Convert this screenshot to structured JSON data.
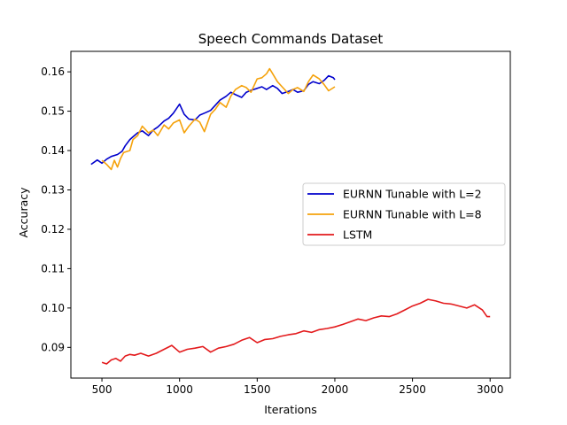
{
  "chart_data": {
    "type": "line",
    "title": "Speech Commands Dataset",
    "xlabel": "Iterations",
    "ylabel": "Accuracy",
    "xlim": [
      300,
      3130
    ],
    "ylim": [
      0.0822,
      0.1652
    ],
    "xticks": [
      500,
      1000,
      1500,
      2000,
      2500,
      3000
    ],
    "yticks": [
      0.09,
      0.1,
      0.11,
      0.12,
      0.13,
      0.14,
      0.15,
      0.16
    ],
    "ytick_labels": [
      "0.09",
      "0.10",
      "0.11",
      "0.12",
      "0.13",
      "0.14",
      "0.15",
      "0.16"
    ],
    "grid": false,
    "legend_position": "center-right",
    "series": [
      {
        "name": "EURNN Tunable with L=2",
        "color": "#0000cc",
        "x": [
          430,
          470,
          500,
          530,
          560,
          600,
          630,
          650,
          680,
          700,
          730,
          760,
          800,
          830,
          860,
          900,
          930,
          960,
          1000,
          1030,
          1060,
          1100,
          1130,
          1160,
          1200,
          1230,
          1260,
          1300,
          1330,
          1360,
          1400,
          1430,
          1460,
          1500,
          1530,
          1560,
          1600,
          1630,
          1660,
          1700,
          1730,
          1760,
          1800,
          1830,
          1860,
          1900,
          1930,
          1960,
          1990,
          2000
        ],
        "y": [
          0.1365,
          0.1376,
          0.1368,
          0.1378,
          0.1385,
          0.139,
          0.1398,
          0.1412,
          0.1428,
          0.1435,
          0.1445,
          0.145,
          0.1438,
          0.1452,
          0.146,
          0.1475,
          0.1482,
          0.1495,
          0.1518,
          0.1492,
          0.148,
          0.1478,
          0.149,
          0.1495,
          0.1502,
          0.1515,
          0.1528,
          0.1538,
          0.1548,
          0.1542,
          0.1535,
          0.1548,
          0.1553,
          0.1558,
          0.1562,
          0.1555,
          0.1565,
          0.1558,
          0.1545,
          0.155,
          0.1555,
          0.1548,
          0.1552,
          0.1568,
          0.1575,
          0.157,
          0.1578,
          0.159,
          0.1585,
          0.158
        ]
      },
      {
        "name": "EURNN Tunable with L=8",
        "color": "#f5a20b",
        "x": [
          500,
          530,
          560,
          580,
          600,
          620,
          640,
          680,
          700,
          730,
          760,
          800,
          830,
          860,
          900,
          930,
          960,
          1000,
          1030,
          1060,
          1100,
          1130,
          1160,
          1200,
          1230,
          1260,
          1300,
          1330,
          1360,
          1400,
          1430,
          1460,
          1500,
          1530,
          1560,
          1580,
          1600,
          1630,
          1660,
          1700,
          1730,
          1760,
          1800,
          1830,
          1860,
          1900,
          1930,
          1960,
          2000
        ],
        "y": [
          0.1375,
          0.1365,
          0.1352,
          0.1375,
          0.1358,
          0.138,
          0.1395,
          0.14,
          0.1428,
          0.1438,
          0.1462,
          0.1445,
          0.1452,
          0.1438,
          0.1465,
          0.1455,
          0.147,
          0.1478,
          0.1445,
          0.1462,
          0.148,
          0.1472,
          0.1448,
          0.1492,
          0.1505,
          0.1522,
          0.151,
          0.1538,
          0.1555,
          0.1565,
          0.156,
          0.1548,
          0.1582,
          0.1585,
          0.1595,
          0.1608,
          0.1595,
          0.1575,
          0.1562,
          0.1545,
          0.1555,
          0.156,
          0.155,
          0.1575,
          0.1592,
          0.1582,
          0.1568,
          0.1552,
          0.1562
        ]
      },
      {
        "name": "LSTM",
        "color": "#e31a1c",
        "x": [
          500,
          530,
          560,
          590,
          620,
          650,
          680,
          710,
          750,
          800,
          850,
          900,
          950,
          1000,
          1050,
          1100,
          1150,
          1200,
          1250,
          1300,
          1350,
          1400,
          1450,
          1500,
          1550,
          1600,
          1650,
          1700,
          1750,
          1800,
          1850,
          1900,
          1950,
          2000,
          2050,
          2100,
          2150,
          2200,
          2250,
          2300,
          2350,
          2400,
          2450,
          2500,
          2550,
          2600,
          2650,
          2700,
          2750,
          2800,
          2850,
          2900,
          2950,
          2980,
          3000
        ],
        "y": [
          0.0862,
          0.0858,
          0.0868,
          0.0872,
          0.0865,
          0.0878,
          0.0882,
          0.088,
          0.0885,
          0.0878,
          0.0885,
          0.0895,
          0.0905,
          0.0888,
          0.0895,
          0.0898,
          0.0902,
          0.0888,
          0.0898,
          0.0902,
          0.0908,
          0.0918,
          0.0925,
          0.0912,
          0.092,
          0.0922,
          0.0928,
          0.0932,
          0.0935,
          0.0942,
          0.0938,
          0.0945,
          0.0948,
          0.0952,
          0.0958,
          0.0965,
          0.0972,
          0.0968,
          0.0975,
          0.098,
          0.0978,
          0.0985,
          0.0995,
          0.1005,
          0.1012,
          0.1022,
          0.1018,
          0.1012,
          0.101,
          0.1005,
          0.1,
          0.1008,
          0.0995,
          0.0978,
          0.0978
        ]
      }
    ]
  }
}
